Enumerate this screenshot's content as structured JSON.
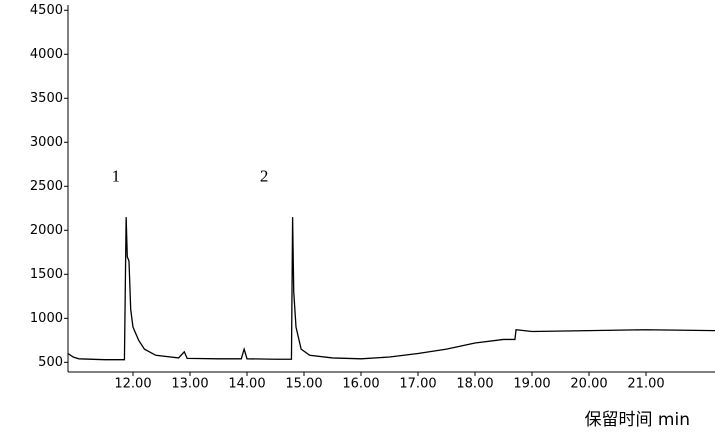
{
  "chart_data": {
    "type": "line",
    "x_label": "保留时间 min",
    "xlim": [
      10.86,
      22.21
    ],
    "ylim": [
      390,
      4560
    ],
    "xticks": [
      {
        "value": 12,
        "label": "12.00"
      },
      {
        "value": 13,
        "label": "13.00"
      },
      {
        "value": 14,
        "label": "14.00"
      },
      {
        "value": 15,
        "label": "15.00"
      },
      {
        "value": 16,
        "label": "16.00"
      },
      {
        "value": 17,
        "label": "17.00"
      },
      {
        "value": 18,
        "label": "18.00"
      },
      {
        "value": 19,
        "label": "19.00"
      },
      {
        "value": 20,
        "label": "20.00"
      },
      {
        "value": 21,
        "label": "21.00"
      }
    ],
    "yticks": [
      500,
      1000,
      1500,
      2000,
      2500,
      3000,
      3500,
      4000,
      4500
    ],
    "series": [
      {
        "color": "#000000",
        "x": [
          10.86,
          10.95,
          11.05,
          11.5,
          11.85,
          11.88,
          11.9,
          11.93,
          11.96,
          12.0,
          12.1,
          12.2,
          12.4,
          12.8,
          12.9,
          12.95,
          13.5,
          13.9,
          13.95,
          14.0,
          14.5,
          14.78,
          14.8,
          14.82,
          14.86,
          14.95,
          15.1,
          15.5,
          16.0,
          16.5,
          17.0,
          17.5,
          18.0,
          18.5,
          18.7,
          18.72,
          19.0,
          20.0,
          21.0,
          22.21
        ],
        "values": [
          600,
          560,
          540,
          530,
          530,
          2150,
          1700,
          1650,
          1100,
          900,
          750,
          650,
          580,
          550,
          620,
          545,
          540,
          540,
          650,
          540,
          535,
          535,
          2150,
          1300,
          900,
          650,
          580,
          550,
          540,
          560,
          600,
          650,
          720,
          760,
          760,
          870,
          850,
          860,
          870,
          860
        ]
      }
    ],
    "annotations": [
      {
        "text": "1",
        "x": 11.7,
        "y": 2600
      },
      {
        "text": "2",
        "x": 14.3,
        "y": 2600
      }
    ]
  }
}
